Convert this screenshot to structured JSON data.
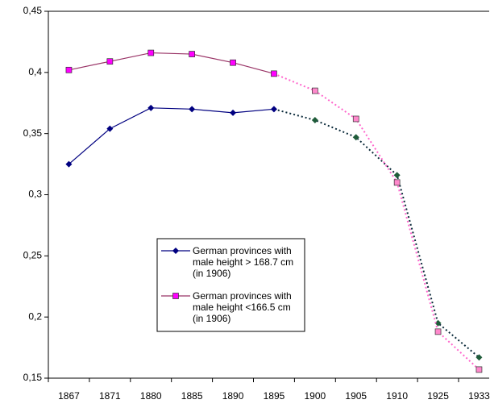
{
  "chart_data": {
    "type": "line",
    "categories": [
      "1867",
      "1871",
      "1880",
      "1885",
      "1890",
      "1895",
      "1900",
      "1905",
      "1910",
      "1925",
      "1933"
    ],
    "dotted_from": "1895",
    "series": [
      {
        "name": "German provinces with male height > 168.7 cm (in 1906)",
        "color": "#000080",
        "marker": "diamond",
        "marker_color": "#000080",
        "dotted_color": "#0b2a3a",
        "dotted_marker_color": "#1f5c3a",
        "values": [
          0.325,
          0.354,
          0.371,
          0.37,
          0.367,
          0.37,
          0.361,
          0.347,
          0.316,
          0.195,
          0.167
        ]
      },
      {
        "name": "German provinces with male height <166.5 cm (in 1906)",
        "color": "#993366",
        "marker": "square",
        "marker_color": "#ff00ff",
        "dotted_color": "#ff66cc",
        "dotted_marker_color": "#ff88cc",
        "values": [
          0.402,
          0.409,
          0.416,
          0.415,
          0.408,
          0.399,
          0.385,
          0.362,
          0.31,
          0.188,
          0.157
        ]
      }
    ],
    "ylim": [
      0.15,
      0.45
    ],
    "yticks": [
      {
        "value": 0.15,
        "label": "0,15"
      },
      {
        "value": 0.2,
        "label": "0,2"
      },
      {
        "value": 0.25,
        "label": "0,25"
      },
      {
        "value": 0.3,
        "label": "0,3"
      },
      {
        "value": 0.35,
        "label": "0,35"
      },
      {
        "value": 0.4,
        "label": "0,4"
      },
      {
        "value": 0.45,
        "label": "0,45"
      }
    ]
  }
}
